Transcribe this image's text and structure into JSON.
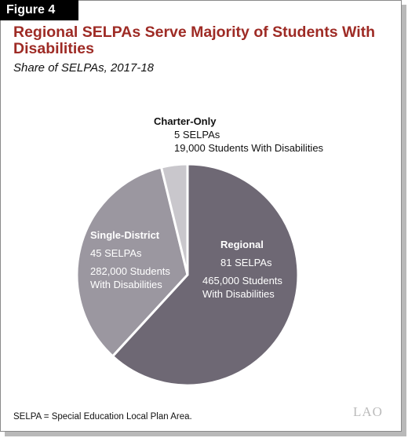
{
  "figure_label": "Figure 4",
  "title": "Regional SELPAs Serve Majority of Students With Disabilities",
  "subtitle": "Share of SELPAs, 2017-18",
  "chart_data": {
    "type": "pie",
    "title": "Regional SELPAs Serve Majority of Students With Disabilities",
    "subtitle": "Share of SELPAs, 2017-18",
    "slices": [
      {
        "name": "Regional",
        "selpas": 81,
        "selpas_label": "81 SELPAs",
        "students": 465000,
        "students_label_1": "465,000 Students",
        "students_label_2": "With Disabilities",
        "color": "#6e6874"
      },
      {
        "name": "Single-District",
        "selpas": 45,
        "selpas_label": "45 SELPAs",
        "students": 282000,
        "students_label_1": "282,000 Students",
        "students_label_2": "With Disabilities",
        "color": "#9b97a0"
      },
      {
        "name": "Charter-Only",
        "selpas": 5,
        "selpas_label": "5 SELPAs",
        "students": 19000,
        "students_label_1": "19,000 Students With Disabilities",
        "students_label_2": "",
        "color": "#c9c7cc"
      }
    ]
  },
  "footnote": "SELPA = Special Education Local Plan Area.",
  "logo_text": "LAO"
}
